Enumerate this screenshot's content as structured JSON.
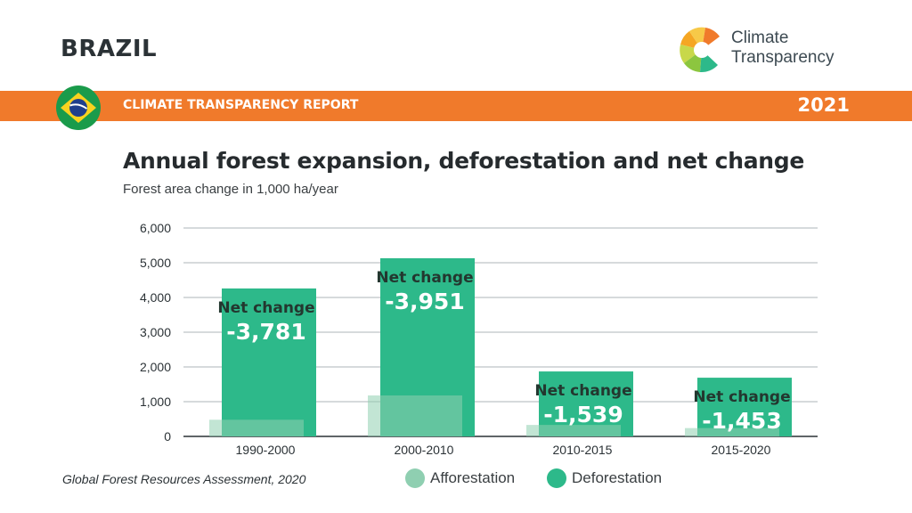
{
  "header": {
    "country": "BRAZIL",
    "logo_line1": "Climate",
    "logo_line2": "Transparency",
    "report": "CLIMATE TRANSPARENCY REPORT",
    "year": "2021"
  },
  "colors": {
    "orange": "#f07a2b",
    "afforestation": "#8fcfb1",
    "deforestation": "#2db98a",
    "grid": "#c9cdd0"
  },
  "source": "Global Forest Resources Assessment, 2020",
  "chart_data": {
    "type": "bar",
    "title": "Annual forest expansion, deforestation and net change",
    "subtitle": "Forest area change in 1,000 ha/year",
    "categories": [
      "1990-2000",
      "2000-2010",
      "2010-2015",
      "2015-2020"
    ],
    "series": [
      {
        "name": "Afforestation",
        "values": [
          480,
          1180,
          330,
          240
        ]
      },
      {
        "name": "Deforestation",
        "values": [
          4260,
          5130,
          1870,
          1690
        ]
      }
    ],
    "annotations": [
      {
        "label": "Net change",
        "value": "-3,781"
      },
      {
        "label": "Net change",
        "value": "-3,951"
      },
      {
        "label": "Net change",
        "value": "-1,539"
      },
      {
        "label": "Net change",
        "value": "-1,453"
      }
    ],
    "yticks": [
      "0",
      "1,000",
      "2,000",
      "3,000",
      "4,000",
      "5,000",
      "6,000"
    ],
    "ylim": [
      0,
      6000
    ],
    "grid": true,
    "legend": "bottom"
  }
}
